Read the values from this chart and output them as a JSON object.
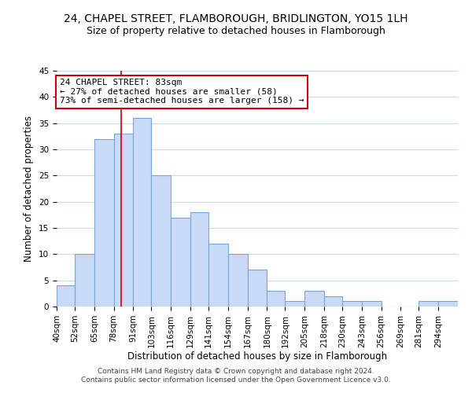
{
  "title": "24, CHAPEL STREET, FLAMBOROUGH, BRIDLINGTON, YO15 1LH",
  "subtitle": "Size of property relative to detached houses in Flamborough",
  "xlabel": "Distribution of detached houses by size in Flamborough",
  "ylabel": "Number of detached properties",
  "bin_labels": [
    "40sqm",
    "52sqm",
    "65sqm",
    "78sqm",
    "91sqm",
    "103sqm",
    "116sqm",
    "129sqm",
    "141sqm",
    "154sqm",
    "167sqm",
    "180sqm",
    "192sqm",
    "205sqm",
    "218sqm",
    "230sqm",
    "243sqm",
    "256sqm",
    "269sqm",
    "281sqm",
    "294sqm"
  ],
  "bar_heights": [
    4,
    10,
    32,
    33,
    36,
    25,
    17,
    18,
    12,
    10,
    7,
    3,
    1,
    3,
    2,
    1,
    1,
    0,
    0,
    1,
    1
  ],
  "bar_color": "#c9daf8",
  "bar_edge_color": "#6fa8dc",
  "ylim": [
    0,
    45
  ],
  "yticks": [
    0,
    5,
    10,
    15,
    20,
    25,
    30,
    35,
    40,
    45
  ],
  "ref_line_x": 83,
  "bin_edges": [
    40,
    52,
    65,
    78,
    91,
    103,
    116,
    129,
    141,
    154,
    167,
    180,
    192,
    205,
    218,
    230,
    243,
    256,
    269,
    281,
    294,
    307
  ],
  "annotation_title": "24 CHAPEL STREET: 83sqm",
  "annotation_line1": "← 27% of detached houses are smaller (58)",
  "annotation_line2": "73% of semi-detached houses are larger (158) →",
  "annotation_box_color": "#ffffff",
  "annotation_box_edge": "#cc0000",
  "ref_line_color": "#cc0000",
  "footer_line1": "Contains HM Land Registry data © Crown copyright and database right 2024.",
  "footer_line2": "Contains public sector information licensed under the Open Government Licence v3.0.",
  "background_color": "#ffffff",
  "grid_color": "#c9daf8",
  "title_fontsize": 10,
  "subtitle_fontsize": 9,
  "axis_label_fontsize": 8.5,
  "tick_fontsize": 7.5,
  "footer_fontsize": 6.5,
  "annotation_fontsize": 8
}
